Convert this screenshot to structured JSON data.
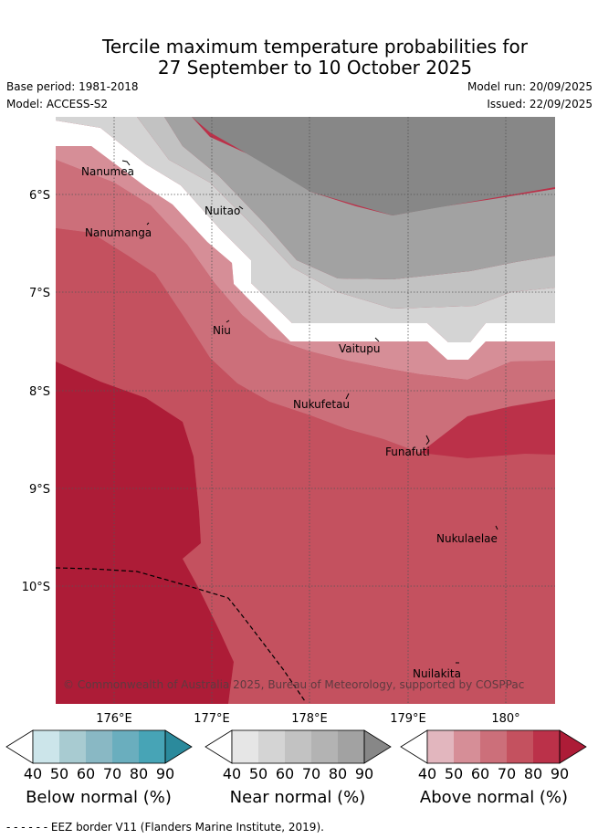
{
  "title": {
    "line1": "Tercile maximum temperature probabilities for",
    "line2": "27 September to 10 October 2025"
  },
  "meta": {
    "base_period": "Base period: 1981-2018",
    "model": "Model: ACCESS-S2",
    "model_run": "Model run: 20/09/2025",
    "issued": "Issued: 22/09/2025"
  },
  "axes": {
    "lat_labels": [
      "6°S",
      "7°S",
      "8°S",
      "9°S",
      "10°S"
    ],
    "lon_labels": [
      "176°E",
      "177°E",
      "178°E",
      "179°E",
      "180°"
    ]
  },
  "islands": {
    "nanumea": "Nanumea",
    "nuitao": "Nuitao",
    "nanumanga": "Nanumanga",
    "niu": "Niu",
    "vaitupu": "Vaitupu",
    "nukufetau": "Nukufetau",
    "funafuti": "Funafuti",
    "nukulaelae": "Nukulaelae",
    "nuilakita": "Nuilakita"
  },
  "copyright": "© Commonwealth of Australia 2025, Bureau of Meteorology, supported by COSPPac",
  "colorbars": {
    "ticks": [
      "40",
      "50",
      "60",
      "70",
      "80",
      "90"
    ],
    "below": {
      "title": "Below normal (%)",
      "colors": [
        "#ffffff",
        "#cce5ea",
        "#a8cbd1",
        "#89b8c4",
        "#6aaebe",
        "#47a4b6",
        "#2b8a9c"
      ]
    },
    "near": {
      "title": "Near normal (%)",
      "colors": [
        "#ffffff",
        "#e6e6e6",
        "#d4d4d4",
        "#c2c2c2",
        "#b3b3b3",
        "#a2a2a2",
        "#878787"
      ]
    },
    "above": {
      "title": "Above normal (%)",
      "colors": [
        "#ffffff",
        "#e2b6be",
        "#d68e97",
        "#cc6f7a",
        "#c4515f",
        "#bb3149",
        "#ad1c37"
      ]
    }
  },
  "footer": "- -  - -  - - EEZ border V11 (Flanders Marine Institute, 2019)."
}
